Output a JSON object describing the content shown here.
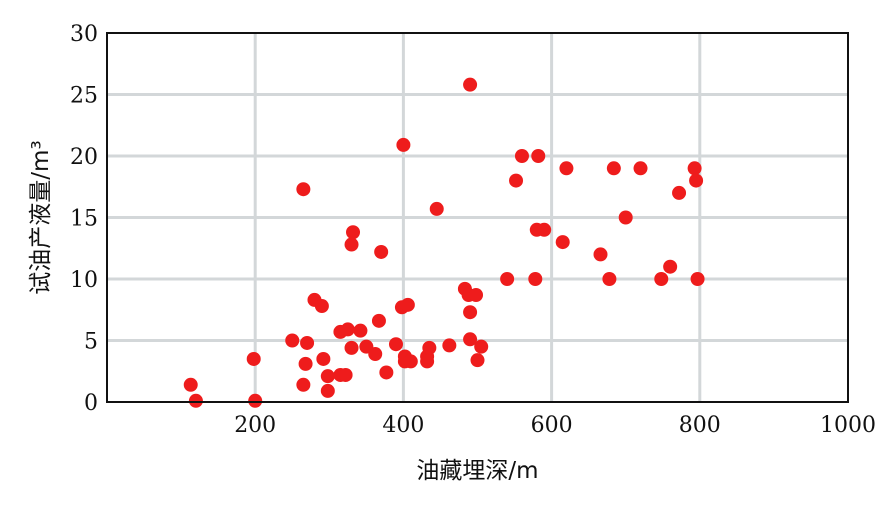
{
  "chart_data": {
    "type": "scatter",
    "xlabel": "油藏埋深/m",
    "ylabel": "试油产液量/m³",
    "xlim": [
      0,
      1000
    ],
    "ylim": [
      0,
      30
    ],
    "x_ticks": [
      200,
      400,
      600,
      800,
      1000
    ],
    "x_tick_labels": [
      "200",
      "400",
      "600",
      "800",
      "1000"
    ],
    "y_ticks": [
      0,
      5,
      10,
      15,
      20,
      25,
      30
    ],
    "y_tick_labels": [
      "0",
      "5",
      "10",
      "15",
      "20",
      "25",
      "30"
    ],
    "grid": true,
    "marker_color": "#ee1c1c",
    "series": [
      {
        "points": [
          [
            113,
            1.4
          ],
          [
            120,
            0.1
          ],
          [
            198,
            3.5
          ],
          [
            200,
            0.1
          ],
          [
            250,
            5.0
          ],
          [
            265,
            17.3
          ],
          [
            265,
            1.4
          ],
          [
            268,
            3.1
          ],
          [
            270,
            4.8
          ],
          [
            280,
            8.3
          ],
          [
            290,
            7.8
          ],
          [
            292,
            3.5
          ],
          [
            298,
            2.1
          ],
          [
            298,
            0.9
          ],
          [
            315,
            5.7
          ],
          [
            315,
            2.2
          ],
          [
            322,
            2.2
          ],
          [
            325,
            5.9
          ],
          [
            330,
            12.8
          ],
          [
            330,
            4.4
          ],
          [
            332,
            13.8
          ],
          [
            342,
            5.8
          ],
          [
            350,
            4.5
          ],
          [
            362,
            3.9
          ],
          [
            367,
            6.6
          ],
          [
            370,
            12.2
          ],
          [
            377,
            2.4
          ],
          [
            390,
            4.7
          ],
          [
            398,
            7.7
          ],
          [
            400,
            20.9
          ],
          [
            402,
            3.7
          ],
          [
            402,
            3.3
          ],
          [
            406,
            7.9
          ],
          [
            410,
            3.3
          ],
          [
            432,
            3.7
          ],
          [
            432,
            3.3
          ],
          [
            435,
            4.4
          ],
          [
            445,
            15.7
          ],
          [
            462,
            4.6
          ],
          [
            483,
            9.2
          ],
          [
            488,
            8.7
          ],
          [
            490,
            25.8
          ],
          [
            490,
            7.3
          ],
          [
            490,
            5.1
          ],
          [
            498,
            8.7
          ],
          [
            500,
            3.4
          ],
          [
            505,
            4.5
          ],
          [
            540,
            10.0
          ],
          [
            552,
            18.0
          ],
          [
            560,
            20.0
          ],
          [
            578,
            10.0
          ],
          [
            580,
            14.0
          ],
          [
            582,
            20.0
          ],
          [
            590,
            14.0
          ],
          [
            615,
            13.0
          ],
          [
            620,
            19.0
          ],
          [
            666,
            12.0
          ],
          [
            678,
            10.0
          ],
          [
            684,
            19.0
          ],
          [
            700,
            15.0
          ],
          [
            720,
            19.0
          ],
          [
            748,
            10.0
          ],
          [
            760,
            11.0
          ],
          [
            772,
            17.0
          ],
          [
            793,
            19.0
          ],
          [
            795,
            18.0
          ],
          [
            797,
            10.0
          ]
        ]
      }
    ]
  }
}
